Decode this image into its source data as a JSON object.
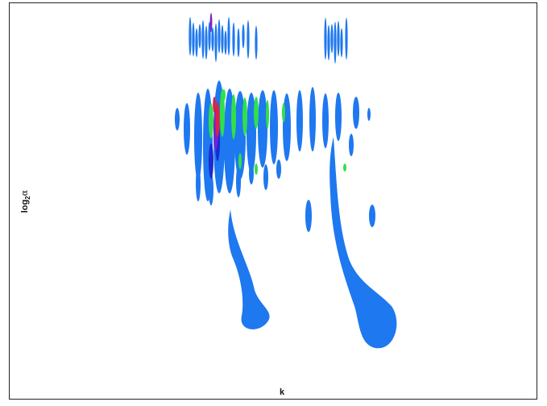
{
  "chart_data": {
    "type": "heatmap",
    "title": "",
    "xlabel": "k",
    "ylabel_main": "log",
    "ylabel_sub": "2",
    "ylabel_symbol": "α",
    "colors": {
      "level_1": "#1e78f0",
      "level_2": "#2fe04a",
      "level_3": "#1a2bd0",
      "level_4": "#7a1fd0",
      "level_5": "#e02040",
      "background": "#ffffff",
      "frame": "#222222"
    }
  }
}
